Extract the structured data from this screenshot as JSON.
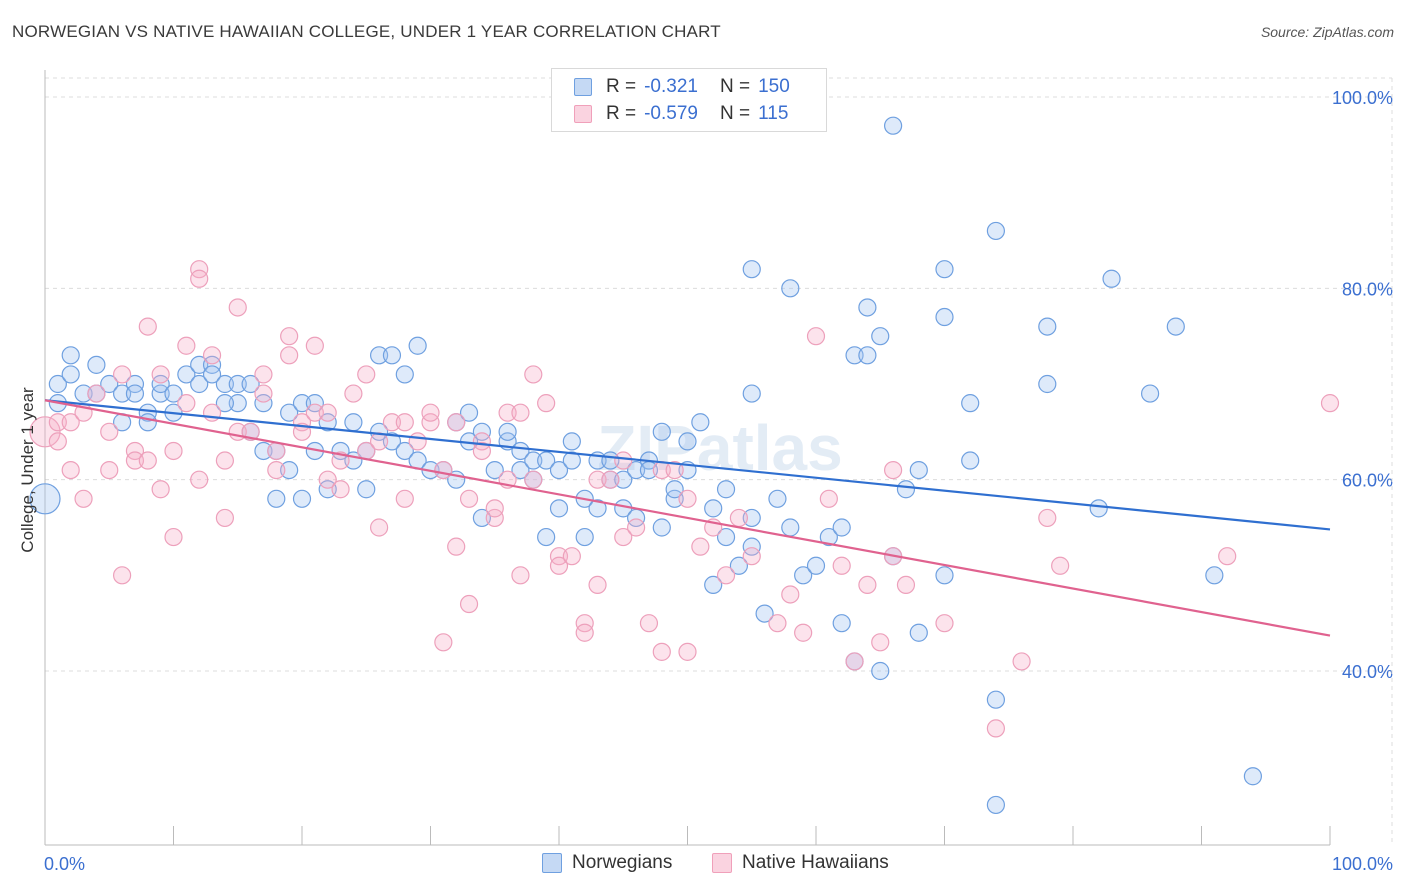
{
  "title": "NORWEGIAN VS NATIVE HAWAIIAN COLLEGE, UNDER 1 YEAR CORRELATION CHART",
  "source": "Source: ZipAtlas.com",
  "watermark": "ZIPatlas",
  "legend_top": {
    "rows": [
      {
        "r_label": "R =",
        "r_value": "-0.321",
        "n_label": "N =",
        "n_value": "150",
        "color": "#6fa0e0"
      },
      {
        "r_label": "R =",
        "r_value": "-0.579",
        "n_label": "N =",
        "n_value": "115",
        "color": "#f0a0ba"
      }
    ]
  },
  "legend_bottom": [
    {
      "label": "Norwegians",
      "color": "#6fa0e0"
    },
    {
      "label": "Native Hawaiians",
      "color": "#f0a0ba"
    }
  ],
  "chart_data": {
    "type": "scatter",
    "title": "NORWEGIAN VS NATIVE HAWAIIAN COLLEGE, UNDER 1 YEAR CORRELATION CHART",
    "xlabel": "",
    "ylabel": "College, Under 1 year",
    "xlim": [
      0,
      1
    ],
    "ylim": [
      0.2,
      1.04
    ],
    "x_tick_labels": [
      "0.0%",
      "100.0%"
    ],
    "y_tick_labels": [
      "100.0%",
      "80.0%",
      "60.0%",
      "40.0%"
    ],
    "y_tick_values": [
      1.0,
      0.8,
      0.6,
      0.4
    ],
    "grid": true,
    "colors": {
      "Norwegians": "#4a84d8",
      "Native Hawaiians": "#e8739d"
    },
    "series": [
      {
        "name": "Norwegians",
        "trend": {
          "x": [
            0,
            1
          ],
          "y": [
            0.683,
            0.548
          ]
        },
        "points": [
          [
            0.01,
            0.7
          ],
          [
            0.02,
            0.71
          ],
          [
            0.02,
            0.73
          ],
          [
            0.03,
            0.69
          ],
          [
            0.04,
            0.72
          ],
          [
            0.04,
            0.69
          ],
          [
            0.05,
            0.7
          ],
          [
            0.06,
            0.69
          ],
          [
            0.06,
            0.66
          ],
          [
            0.07,
            0.7
          ],
          [
            0.07,
            0.69
          ],
          [
            0.08,
            0.67
          ],
          [
            0.09,
            0.69
          ],
          [
            0.09,
            0.7
          ],
          [
            0.1,
            0.67
          ],
          [
            0.11,
            0.71
          ],
          [
            0.12,
            0.72
          ],
          [
            0.12,
            0.7
          ],
          [
            0.13,
            0.72
          ],
          [
            0.13,
            0.71
          ],
          [
            0.14,
            0.7
          ],
          [
            0.15,
            0.7
          ],
          [
            0.15,
            0.68
          ],
          [
            0.16,
            0.65
          ],
          [
            0.17,
            0.68
          ],
          [
            0.17,
            0.63
          ],
          [
            0.18,
            0.58
          ],
          [
            0.19,
            0.67
          ],
          [
            0.19,
            0.61
          ],
          [
            0.2,
            0.68
          ],
          [
            0.21,
            0.63
          ],
          [
            0.21,
            0.68
          ],
          [
            0.22,
            0.59
          ],
          [
            0.23,
            0.63
          ],
          [
            0.24,
            0.62
          ],
          [
            0.24,
            0.66
          ],
          [
            0.25,
            0.63
          ],
          [
            0.25,
            0.59
          ],
          [
            0.26,
            0.65
          ],
          [
            0.26,
            0.73
          ],
          [
            0.27,
            0.73
          ],
          [
            0.27,
            0.64
          ],
          [
            0.28,
            0.71
          ],
          [
            0.28,
            0.63
          ],
          [
            0.29,
            0.62
          ],
          [
            0.29,
            0.74
          ],
          [
            0.3,
            0.61
          ],
          [
            0.31,
            0.61
          ],
          [
            0.32,
            0.6
          ],
          [
            0.32,
            0.66
          ],
          [
            0.33,
            0.67
          ],
          [
            0.33,
            0.64
          ],
          [
            0.34,
            0.56
          ],
          [
            0.34,
            0.65
          ],
          [
            0.35,
            0.61
          ],
          [
            0.36,
            0.64
          ],
          [
            0.36,
            0.65
          ],
          [
            0.37,
            0.63
          ],
          [
            0.37,
            0.61
          ],
          [
            0.38,
            0.6
          ],
          [
            0.38,
            0.62
          ],
          [
            0.39,
            0.54
          ],
          [
            0.39,
            0.62
          ],
          [
            0.4,
            0.61
          ],
          [
            0.4,
            0.57
          ],
          [
            0.41,
            0.62
          ],
          [
            0.41,
            0.64
          ],
          [
            0.42,
            0.58
          ],
          [
            0.42,
            0.54
          ],
          [
            0.43,
            0.62
          ],
          [
            0.43,
            0.57
          ],
          [
            0.44,
            0.6
          ],
          [
            0.44,
            0.62
          ],
          [
            0.45,
            0.6
          ],
          [
            0.45,
            0.57
          ],
          [
            0.46,
            0.61
          ],
          [
            0.46,
            0.56
          ],
          [
            0.47,
            0.62
          ],
          [
            0.47,
            0.61
          ],
          [
            0.48,
            0.55
          ],
          [
            0.48,
            0.65
          ],
          [
            0.49,
            0.58
          ],
          [
            0.49,
            0.59
          ],
          [
            0.5,
            0.61
          ],
          [
            0.5,
            0.64
          ],
          [
            0.51,
            0.66
          ],
          [
            0.52,
            0.57
          ],
          [
            0.52,
            0.49
          ],
          [
            0.53,
            0.59
          ],
          [
            0.53,
            0.54
          ],
          [
            0.54,
            0.51
          ],
          [
            0.55,
            0.53
          ],
          [
            0.55,
            0.56
          ],
          [
            0.55,
            0.69
          ],
          [
            0.56,
            0.46
          ],
          [
            0.57,
            0.58
          ],
          [
            0.58,
            0.55
          ],
          [
            0.58,
            0.8
          ],
          [
            0.59,
            0.5
          ],
          [
            0.6,
            0.51
          ],
          [
            0.61,
            0.54
          ],
          [
            0.62,
            0.55
          ],
          [
            0.62,
            0.45
          ],
          [
            0.63,
            0.41
          ],
          [
            0.63,
            0.73
          ],
          [
            0.64,
            0.78
          ],
          [
            0.64,
            0.73
          ],
          [
            0.65,
            0.4
          ],
          [
            0.65,
            0.75
          ],
          [
            0.66,
            0.52
          ],
          [
            0.67,
            0.59
          ],
          [
            0.68,
            0.44
          ],
          [
            0.68,
            0.61
          ],
          [
            0.7,
            0.82
          ],
          [
            0.7,
            0.77
          ],
          [
            0.7,
            0.5
          ],
          [
            0.72,
            0.62
          ],
          [
            0.72,
            0.68
          ],
          [
            0.74,
            0.37
          ],
          [
            0.74,
            0.86
          ],
          [
            0.78,
            0.76
          ],
          [
            0.78,
            0.7
          ],
          [
            0.82,
            0.57
          ],
          [
            0.83,
            0.81
          ],
          [
            0.86,
            0.69
          ],
          [
            0.88,
            0.76
          ],
          [
            0.91,
            0.5
          ],
          [
            0.94,
            0.29
          ],
          [
            0.74,
            0.26
          ],
          [
            0.66,
            0.97
          ],
          [
            0.55,
            0.82
          ],
          [
            0.0,
            0.58
          ],
          [
            0.01,
            0.68
          ],
          [
            0.08,
            0.66
          ],
          [
            0.1,
            0.69
          ],
          [
            0.14,
            0.68
          ],
          [
            0.16,
            0.7
          ],
          [
            0.18,
            0.63
          ],
          [
            0.2,
            0.58
          ],
          [
            0.22,
            0.66
          ]
        ]
      },
      {
        "name": "Native Hawaiians",
        "trend": {
          "x": [
            0,
            1
          ],
          "y": [
            0.683,
            0.437
          ]
        },
        "points": [
          [
            0.0,
            0.65
          ],
          [
            0.01,
            0.66
          ],
          [
            0.01,
            0.64
          ],
          [
            0.02,
            0.66
          ],
          [
            0.02,
            0.61
          ],
          [
            0.03,
            0.58
          ],
          [
            0.03,
            0.67
          ],
          [
            0.04,
            0.69
          ],
          [
            0.05,
            0.65
          ],
          [
            0.05,
            0.61
          ],
          [
            0.06,
            0.5
          ],
          [
            0.06,
            0.71
          ],
          [
            0.07,
            0.63
          ],
          [
            0.07,
            0.62
          ],
          [
            0.08,
            0.76
          ],
          [
            0.08,
            0.62
          ],
          [
            0.09,
            0.59
          ],
          [
            0.09,
            0.71
          ],
          [
            0.1,
            0.54
          ],
          [
            0.1,
            0.63
          ],
          [
            0.11,
            0.74
          ],
          [
            0.11,
            0.68
          ],
          [
            0.12,
            0.82
          ],
          [
            0.12,
            0.81
          ],
          [
            0.12,
            0.6
          ],
          [
            0.13,
            0.67
          ],
          [
            0.13,
            0.73
          ],
          [
            0.14,
            0.56
          ],
          [
            0.14,
            0.62
          ],
          [
            0.15,
            0.78
          ],
          [
            0.15,
            0.65
          ],
          [
            0.16,
            0.65
          ],
          [
            0.17,
            0.69
          ],
          [
            0.17,
            0.71
          ],
          [
            0.18,
            0.63
          ],
          [
            0.18,
            0.61
          ],
          [
            0.19,
            0.75
          ],
          [
            0.19,
            0.73
          ],
          [
            0.2,
            0.66
          ],
          [
            0.2,
            0.65
          ],
          [
            0.21,
            0.74
          ],
          [
            0.21,
            0.67
          ],
          [
            0.22,
            0.67
          ],
          [
            0.22,
            0.6
          ],
          [
            0.23,
            0.62
          ],
          [
            0.23,
            0.59
          ],
          [
            0.24,
            0.69
          ],
          [
            0.25,
            0.71
          ],
          [
            0.25,
            0.63
          ],
          [
            0.26,
            0.64
          ],
          [
            0.26,
            0.55
          ],
          [
            0.27,
            0.66
          ],
          [
            0.28,
            0.66
          ],
          [
            0.28,
            0.58
          ],
          [
            0.29,
            0.64
          ],
          [
            0.3,
            0.66
          ],
          [
            0.3,
            0.67
          ],
          [
            0.31,
            0.43
          ],
          [
            0.31,
            0.61
          ],
          [
            0.32,
            0.66
          ],
          [
            0.32,
            0.53
          ],
          [
            0.33,
            0.58
          ],
          [
            0.34,
            0.64
          ],
          [
            0.34,
            0.63
          ],
          [
            0.35,
            0.56
          ],
          [
            0.35,
            0.57
          ],
          [
            0.36,
            0.67
          ],
          [
            0.36,
            0.6
          ],
          [
            0.37,
            0.5
          ],
          [
            0.37,
            0.67
          ],
          [
            0.38,
            0.71
          ],
          [
            0.38,
            0.6
          ],
          [
            0.39,
            0.68
          ],
          [
            0.4,
            0.52
          ],
          [
            0.4,
            0.51
          ],
          [
            0.41,
            0.52
          ],
          [
            0.42,
            0.45
          ],
          [
            0.42,
            0.44
          ],
          [
            0.43,
            0.49
          ],
          [
            0.43,
            0.6
          ],
          [
            0.44,
            0.6
          ],
          [
            0.45,
            0.54
          ],
          [
            0.46,
            0.55
          ],
          [
            0.47,
            0.45
          ],
          [
            0.48,
            0.42
          ],
          [
            0.48,
            0.61
          ],
          [
            0.49,
            0.61
          ],
          [
            0.5,
            0.42
          ],
          [
            0.51,
            0.53
          ],
          [
            0.52,
            0.55
          ],
          [
            0.53,
            0.5
          ],
          [
            0.54,
            0.56
          ],
          [
            0.55,
            0.52
          ],
          [
            0.57,
            0.45
          ],
          [
            0.58,
            0.48
          ],
          [
            0.59,
            0.44
          ],
          [
            0.6,
            0.75
          ],
          [
            0.61,
            0.58
          ],
          [
            0.62,
            0.51
          ],
          [
            0.63,
            0.41
          ],
          [
            0.64,
            0.49
          ],
          [
            0.65,
            0.43
          ],
          [
            0.66,
            0.52
          ],
          [
            0.67,
            0.49
          ],
          [
            0.7,
            0.45
          ],
          [
            0.74,
            0.34
          ],
          [
            0.76,
            0.41
          ],
          [
            0.78,
            0.56
          ],
          [
            0.79,
            0.51
          ],
          [
            0.92,
            0.52
          ],
          [
            0.66,
            0.61
          ],
          [
            0.45,
            0.62
          ],
          [
            0.5,
            0.58
          ],
          [
            0.33,
            0.47
          ],
          [
            1.0,
            0.68
          ]
        ]
      }
    ]
  }
}
